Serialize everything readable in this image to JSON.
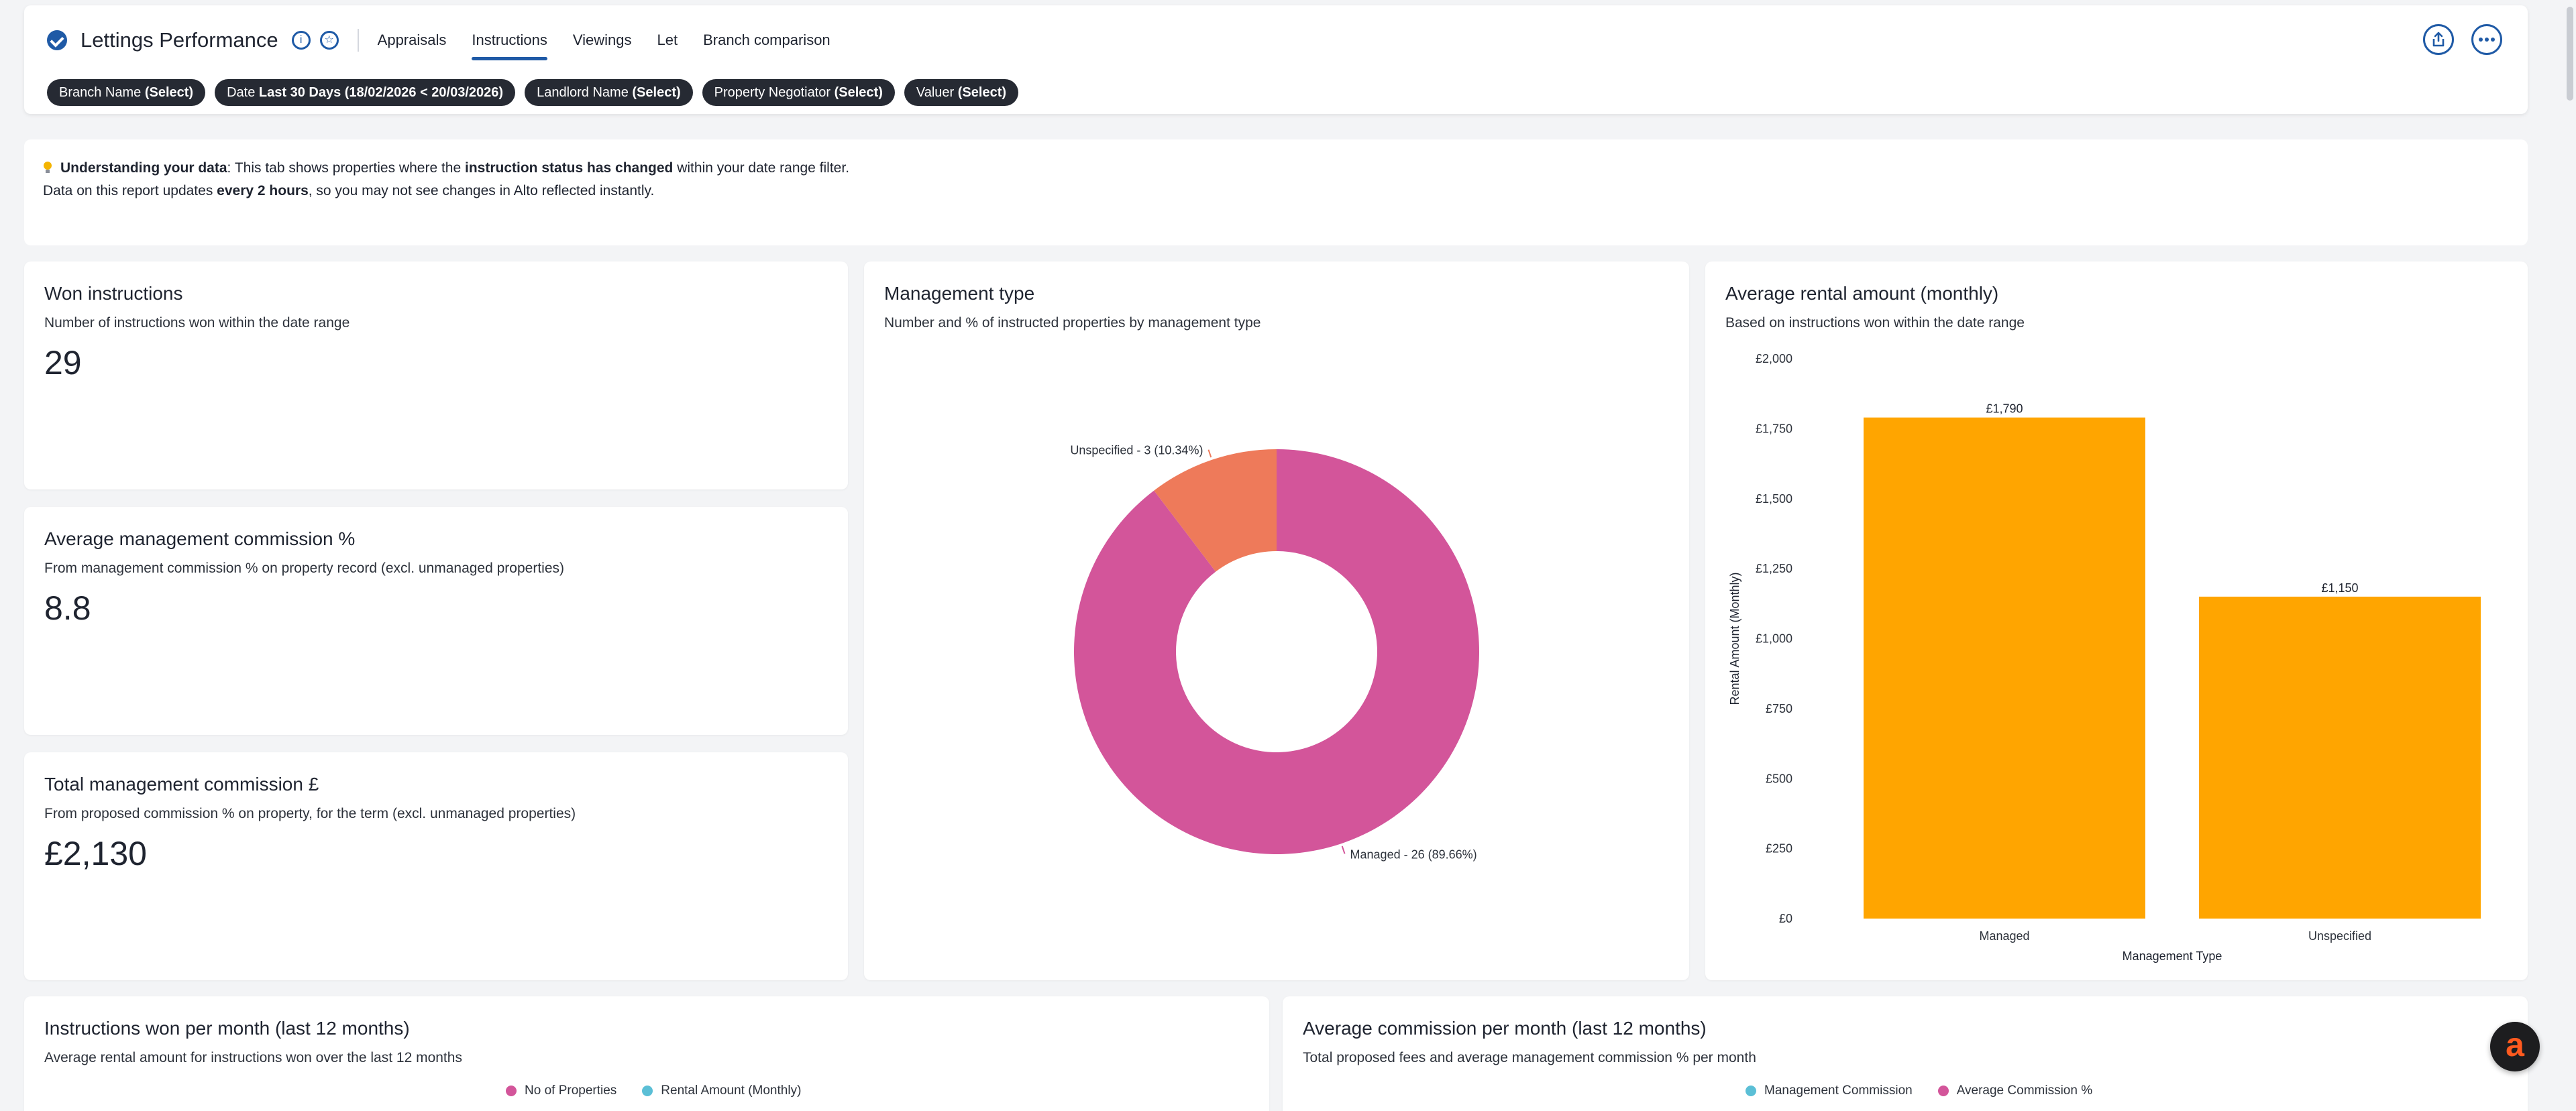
{
  "header": {
    "title": "Lettings Performance",
    "tabs": [
      "Appraisals",
      "Instructions",
      "Viewings",
      "Let",
      "Branch comparison"
    ],
    "active_tab": "Instructions",
    "filters": [
      {
        "label": "Branch Name",
        "value": "(Select)"
      },
      {
        "label": "Date",
        "value": "Last 30 Days (18/02/2026 < 20/03/2026)"
      },
      {
        "label": "Landlord Name",
        "value": "(Select)"
      },
      {
        "label": "Property Negotiator",
        "value": "(Select)"
      },
      {
        "label": "Valuer",
        "value": "(Select)"
      }
    ],
    "icons": [
      "verified-icon",
      "info-circle-icon",
      "star-icon",
      "share-icon",
      "more-icon"
    ]
  },
  "info": {
    "line1_bold_lead": "Understanding your data",
    "line1_text_a": ": This tab shows properties where the ",
    "line1_bold_mid": "instruction status has changed",
    "line1_text_b": " within your date range filter.",
    "line2_text_a": "Data on this report updates ",
    "line2_bold": "every 2 hours",
    "line2_text_b": ", so you may not see changes in Alto reflected instantly."
  },
  "cards": {
    "won": {
      "title": "Won instructions",
      "subtitle": "Number of instructions won within the date range",
      "value": "29"
    },
    "avg_commission": {
      "title": "Average management commission %",
      "subtitle": "From management commission % on property record (excl. unmanaged properties)",
      "value": "8.8"
    },
    "total_commission": {
      "title": "Total management commission £",
      "subtitle": "From proposed commission % on property, for the term (excl. unmanaged properties)",
      "value": "£2,130"
    },
    "management_type": {
      "title": "Management type",
      "subtitle": "Number and % of instructed properties by management type"
    },
    "avg_rental": {
      "title": "Average rental amount (monthly)",
      "subtitle": "Based on instructions won within the date range"
    },
    "instructions_per_month": {
      "title": "Instructions won per month (last 12 months)",
      "subtitle": "Average rental amount for instructions won over the last 12 months",
      "legend": [
        {
          "name": "No of Properties",
          "color": "#d3559a"
        },
        {
          "name": "Rental Amount (Monthly)",
          "color": "#5bbfd6"
        }
      ]
    },
    "commission_per_month": {
      "title": "Average commission per month (last 12 months)",
      "subtitle": "Total proposed fees and average management commission % per month",
      "legend": [
        {
          "name": "Management Commission",
          "color": "#5bbfd6"
        },
        {
          "name": "Average Commission %",
          "color": "#d3559a"
        }
      ]
    }
  },
  "chart_data": [
    {
      "type": "pie",
      "donut": true,
      "slices": [
        {
          "name": "Managed",
          "value": 26,
          "percent": 89.66,
          "label": "Managed - 26 (89.66%)",
          "color": "#d3559a"
        },
        {
          "name": "Unspecified",
          "value": 3,
          "percent": 10.34,
          "label": "Unspecified - 3 (10.34%)",
          "color": "#ee7a5a"
        }
      ]
    },
    {
      "type": "bar",
      "categories": [
        "Managed",
        "Unspecified"
      ],
      "values": [
        1790,
        1150
      ],
      "value_labels": [
        "£1,790",
        "£1,150"
      ],
      "xlabel": "Management Type",
      "ylabel": "Rental Amount (Monthly)",
      "ylim": [
        0,
        2000
      ],
      "yticks": [
        0,
        250,
        500,
        750,
        1000,
        1250,
        1500,
        1750,
        2000
      ],
      "ytick_labels": [
        "£0",
        "£250",
        "£500",
        "£750",
        "£1,000",
        "£1,250",
        "£1,500",
        "£1,750",
        "£2,000"
      ],
      "bar_color": "#ffa500"
    }
  ]
}
